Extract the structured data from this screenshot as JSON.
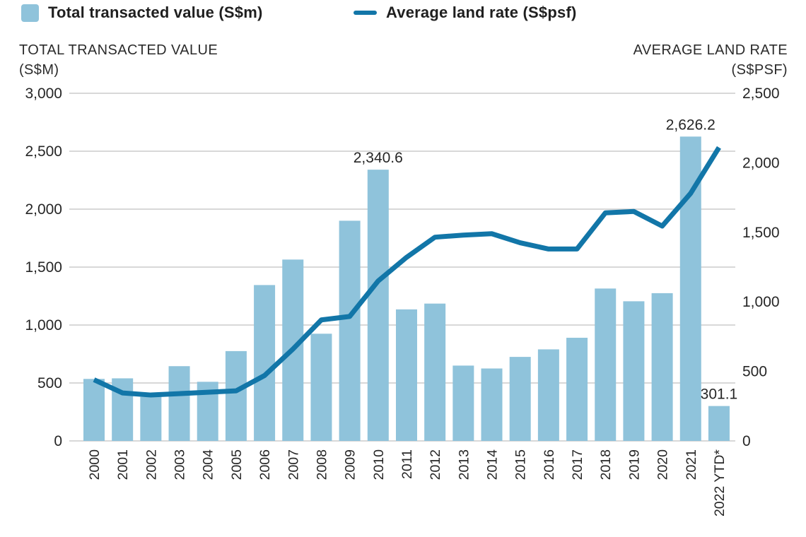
{
  "legend": {
    "bar_label": "Total transacted value (S$m)",
    "line_label": "Average land rate (S$psf)"
  },
  "axes": {
    "left_title_line1": "TOTAL TRANSACTED VALUE",
    "left_title_line2": "(S$M)",
    "right_title_line1": "AVERAGE LAND RATE",
    "right_title_line2": "(S$PSF)",
    "left_ticks": [
      "3,000",
      "2,500",
      "2,000",
      "1,500",
      "1,000",
      "500",
      "0"
    ],
    "right_ticks": [
      "2,500",
      "2,000",
      "1,500",
      "1,000",
      "500",
      "0"
    ]
  },
  "colors": {
    "bar": "#8FC3DB",
    "line": "#1276A8",
    "grid": "#CBCBCB",
    "text": "#262626"
  },
  "chart_data": {
    "type": "bar+line",
    "categories": [
      "2000",
      "2001",
      "2002",
      "2003",
      "2004",
      "2005",
      "2006",
      "2007",
      "2008",
      "2009",
      "2010",
      "2011",
      "2012",
      "2013",
      "2014",
      "2015",
      "2016",
      "2017",
      "2018",
      "2019",
      "2020",
      "2021",
      "2022 YTD*"
    ],
    "series": [
      {
        "name": "Total transacted value (S$m)",
        "type": "bar",
        "axis": "left",
        "values": [
          535,
          540,
          380,
          645,
          510,
          775,
          1345,
          1565,
          925,
          1900,
          2340.6,
          1135,
          1185,
          650,
          625,
          725,
          790,
          890,
          1315,
          1205,
          1275,
          2626.2,
          301.1
        ]
      },
      {
        "name": "Average land rate (S$psf)",
        "type": "line",
        "axis": "right",
        "values": [
          440,
          345,
          330,
          340,
          350,
          360,
          470,
          660,
          870,
          895,
          1150,
          1320,
          1465,
          1480,
          1490,
          1425,
          1380,
          1380,
          1640,
          1650,
          1545,
          1780,
          2110
        ]
      }
    ],
    "value_labels": {
      "2010": "2,340.6",
      "2021": "2,626.2",
      "2022 YTD*": "301.1"
    },
    "left_axis": {
      "min": 0,
      "max": 3000,
      "step": 500
    },
    "right_axis": {
      "min": 0,
      "max": 2500,
      "step": 500
    },
    "grid": true,
    "legend_position": "top"
  }
}
